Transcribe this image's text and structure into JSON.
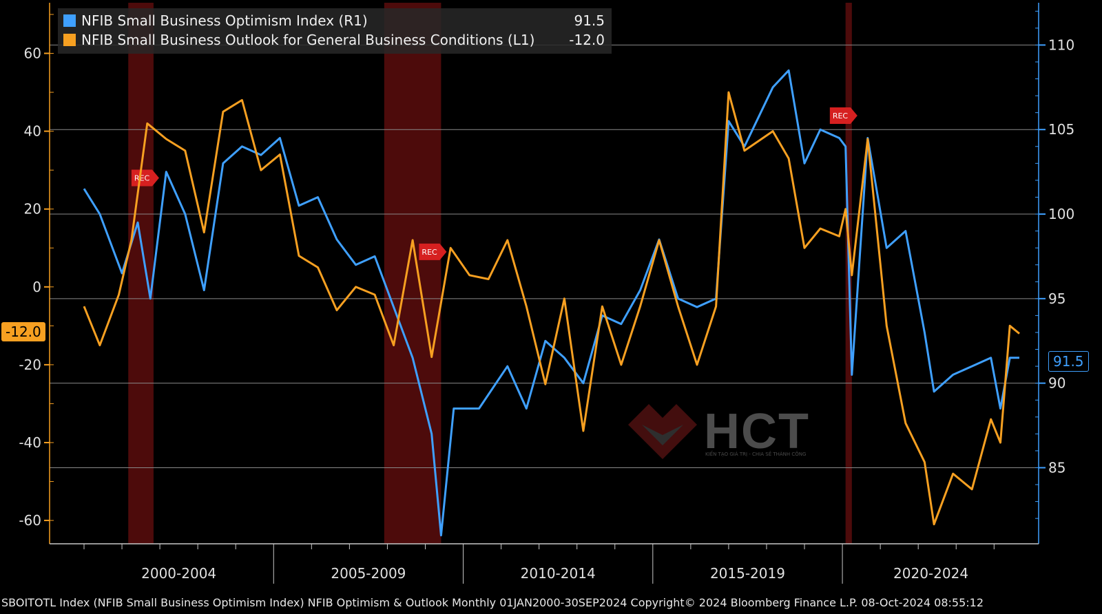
{
  "legend": {
    "items": [
      {
        "name": "NFIB Small Business Optimism Index  (R1)",
        "value": "91.5",
        "color": "#3fa0ff"
      },
      {
        "name": "NFIB Small Business Outlook for General Business Conditions (L1)",
        "value": "-12.0",
        "color": "#f7a021"
      }
    ]
  },
  "last_values": {
    "left": "-12.0",
    "right": "91.5"
  },
  "footer": "SBOITOTL Index (NFIB Small Business Optimism Index) NFIB Optimism & Outlook  Monthly 01JAN2000-30SEP2024  Copyright© 2024 Bloomberg Finance L.P.  08-Oct-2024 08:55:12",
  "watermark": {
    "brand": "HCT",
    "tagline": "KIẾN TẠO GIÁ TRỊ - CHIA SẺ THÀNH CÔNG"
  },
  "chart_data": {
    "type": "line",
    "title": "",
    "x_range": [
      "2000-01",
      "2024-09"
    ],
    "period_labels": [
      "2000-2004",
      "2005-2009",
      "2010-2014",
      "2015-2019",
      "2020-2024"
    ],
    "left_axis": {
      "ticks": [
        60,
        40,
        20,
        0,
        -20,
        -40,
        -60
      ],
      "ylim": [
        -66,
        73
      ]
    },
    "right_axis": {
      "ticks": [
        110,
        105,
        100,
        95,
        90,
        85
      ],
      "ylim": [
        80.5,
        112.5
      ]
    },
    "recession_bands": [
      {
        "start": "2001-03",
        "end": "2001-11",
        "label": "REC"
      },
      {
        "start": "2007-12",
        "end": "2009-06",
        "label": "REC"
      },
      {
        "start": "2020-02",
        "end": "2020-04",
        "label": "REC"
      }
    ],
    "series": [
      {
        "name": "NFIB Small Business Optimism Index  (R1)",
        "axis": "right",
        "color": "#3fa0ff",
        "points": [
          [
            "2000-01",
            101.5
          ],
          [
            "2000-06",
            100.0
          ],
          [
            "2001-01",
            96.5
          ],
          [
            "2001-06",
            99.5
          ],
          [
            "2001-10",
            95.0
          ],
          [
            "2002-03",
            102.5
          ],
          [
            "2002-09",
            100.0
          ],
          [
            "2003-03",
            95.5
          ],
          [
            "2003-09",
            103.0
          ],
          [
            "2004-03",
            104.0
          ],
          [
            "2004-09",
            103.5
          ],
          [
            "2005-03",
            104.5
          ],
          [
            "2005-09",
            100.5
          ],
          [
            "2006-03",
            101.0
          ],
          [
            "2006-09",
            98.5
          ],
          [
            "2007-03",
            97.0
          ],
          [
            "2007-09",
            97.5
          ],
          [
            "2008-03",
            94.5
          ],
          [
            "2008-09",
            91.5
          ],
          [
            "2009-03",
            87.0
          ],
          [
            "2009-06",
            81.0
          ],
          [
            "2009-10",
            88.5
          ],
          [
            "2010-06",
            88.5
          ],
          [
            "2011-03",
            91.0
          ],
          [
            "2011-09",
            88.5
          ],
          [
            "2012-03",
            92.5
          ],
          [
            "2012-09",
            91.5
          ],
          [
            "2013-03",
            90.0
          ],
          [
            "2013-09",
            94.0
          ],
          [
            "2014-03",
            93.5
          ],
          [
            "2014-09",
            95.5
          ],
          [
            "2015-03",
            98.5
          ],
          [
            "2015-09",
            95.0
          ],
          [
            "2016-03",
            94.5
          ],
          [
            "2016-09",
            95.0
          ],
          [
            "2017-01",
            105.5
          ],
          [
            "2017-06",
            104.0
          ],
          [
            "2018-03",
            107.5
          ],
          [
            "2018-08",
            108.5
          ],
          [
            "2019-01",
            103.0
          ],
          [
            "2019-06",
            105.0
          ],
          [
            "2019-12",
            104.5
          ],
          [
            "2020-02",
            104.0
          ],
          [
            "2020-04",
            90.5
          ],
          [
            "2020-09",
            104.5
          ],
          [
            "2021-03",
            98.0
          ],
          [
            "2021-09",
            99.0
          ],
          [
            "2022-03",
            93.0
          ],
          [
            "2022-06",
            89.5
          ],
          [
            "2022-12",
            90.5
          ],
          [
            "2023-06",
            91.0
          ],
          [
            "2023-12",
            91.5
          ],
          [
            "2024-03",
            88.5
          ],
          [
            "2024-06",
            91.5
          ],
          [
            "2024-09",
            91.5
          ]
        ]
      },
      {
        "name": "NFIB Small Business Outlook for General Business Conditions (L1)",
        "axis": "left",
        "color": "#f7a021",
        "points": [
          [
            "2000-01",
            -5
          ],
          [
            "2000-06",
            -15
          ],
          [
            "2000-12",
            -2
          ],
          [
            "2001-04",
            12
          ],
          [
            "2001-09",
            42
          ],
          [
            "2002-03",
            38
          ],
          [
            "2002-09",
            35
          ],
          [
            "2003-03",
            14
          ],
          [
            "2003-09",
            45
          ],
          [
            "2004-03",
            48
          ],
          [
            "2004-09",
            30
          ],
          [
            "2005-03",
            34
          ],
          [
            "2005-09",
            8
          ],
          [
            "2006-03",
            5
          ],
          [
            "2006-09",
            -6
          ],
          [
            "2007-03",
            0
          ],
          [
            "2007-09",
            -2
          ],
          [
            "2008-03",
            -15
          ],
          [
            "2008-09",
            12
          ],
          [
            "2009-03",
            -18
          ],
          [
            "2009-09",
            10
          ],
          [
            "2010-03",
            3
          ],
          [
            "2010-09",
            2
          ],
          [
            "2011-03",
            12
          ],
          [
            "2011-09",
            -5
          ],
          [
            "2012-03",
            -25
          ],
          [
            "2012-09",
            -3
          ],
          [
            "2013-03",
            -37
          ],
          [
            "2013-09",
            -5
          ],
          [
            "2014-03",
            -20
          ],
          [
            "2014-09",
            -5
          ],
          [
            "2015-03",
            12
          ],
          [
            "2015-09",
            -5
          ],
          [
            "2016-03",
            -20
          ],
          [
            "2016-09",
            -5
          ],
          [
            "2017-01",
            50
          ],
          [
            "2017-06",
            35
          ],
          [
            "2018-03",
            40
          ],
          [
            "2018-08",
            33
          ],
          [
            "2019-01",
            10
          ],
          [
            "2019-06",
            15
          ],
          [
            "2019-12",
            13
          ],
          [
            "2020-02",
            20
          ],
          [
            "2020-04",
            3
          ],
          [
            "2020-09",
            38
          ],
          [
            "2021-03",
            -10
          ],
          [
            "2021-09",
            -35
          ],
          [
            "2022-03",
            -45
          ],
          [
            "2022-06",
            -61
          ],
          [
            "2022-12",
            -48
          ],
          [
            "2023-06",
            -52
          ],
          [
            "2023-12",
            -34
          ],
          [
            "2024-03",
            -40
          ],
          [
            "2024-06",
            -10
          ],
          [
            "2024-09",
            -12
          ]
        ]
      }
    ]
  }
}
